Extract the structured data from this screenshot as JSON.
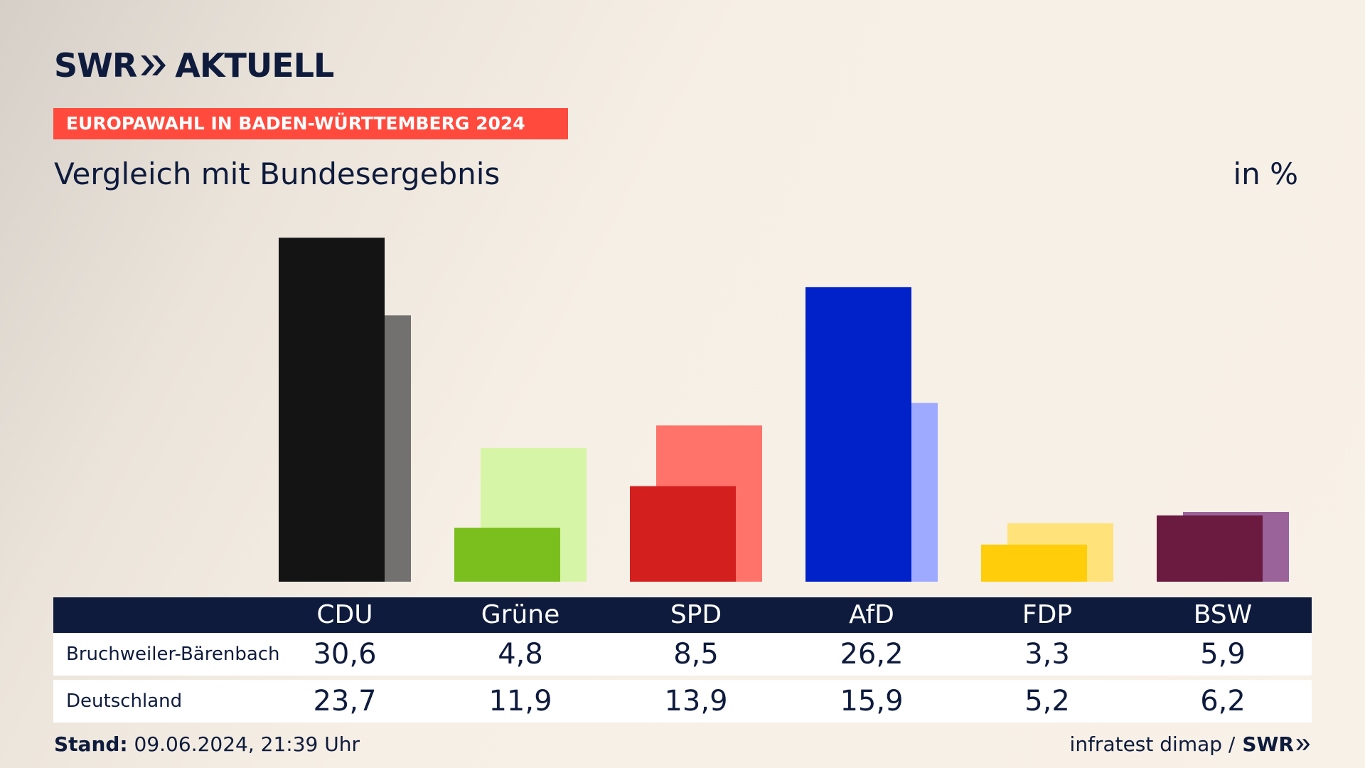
{
  "brand": {
    "logo_left": "SWR",
    "logo_right": "AKTUELL",
    "navy": "#0e1b3d",
    "accent": "#ff4a3d"
  },
  "header": {
    "banner": "EUROPAWAHL IN BADEN-WÜRTTEMBERG 2024",
    "subtitle": "Vergleich mit Bundesergebnis",
    "unit": "in %"
  },
  "chart_data": {
    "type": "bar",
    "categories": [
      "CDU",
      "Grüne",
      "SPD",
      "AfD",
      "FDP",
      "BSW"
    ],
    "series": [
      {
        "name": "Bruchweiler-Bärenbach",
        "values": [
          30.6,
          4.8,
          8.5,
          26.2,
          3.3,
          5.9
        ],
        "colors": [
          "#141414",
          "#7bbf1f",
          "#d41f1f",
          "#0022c8",
          "#ffcd0a",
          "#6b1a40"
        ]
      },
      {
        "name": "Deutschland",
        "values": [
          23.7,
          11.9,
          13.9,
          15.9,
          5.2,
          6.2
        ],
        "colors": [
          "#73716f",
          "#d7f5a6",
          "#ff736b",
          "#9eaaff",
          "#ffe279",
          "#9a6399"
        ]
      }
    ],
    "ylim": [
      0,
      31
    ]
  },
  "table": {
    "headers": [
      "CDU",
      "Grüne",
      "SPD",
      "AfD",
      "FDP",
      "BSW"
    ],
    "rows": [
      {
        "label": "Bruchweiler-Bärenbach",
        "values": [
          "30,6",
          "4,8",
          "8,5",
          "26,2",
          "3,3",
          "5,9"
        ]
      },
      {
        "label": "Deutschland",
        "values": [
          "23,7",
          "11,9",
          "13,9",
          "15,9",
          "5,2",
          "6,2"
        ]
      }
    ]
  },
  "footer": {
    "stand_label": "Stand:",
    "stand_value": "09.06.2024, 21:39 Uhr",
    "source": "infratest dimap /",
    "source_brand": "SWR"
  }
}
